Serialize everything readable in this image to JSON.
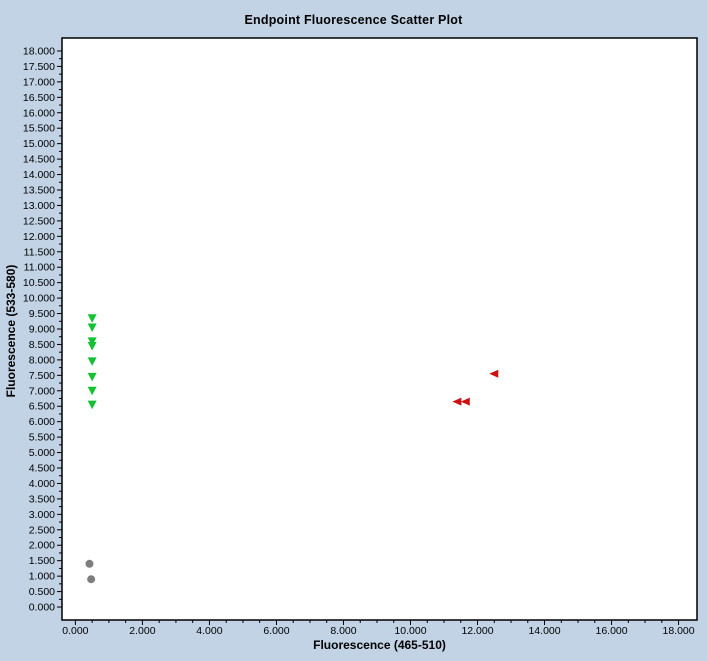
{
  "window": {
    "background_color": "#c2d3e5",
    "plot_border_color": "#000000",
    "plot_background_color": "#ffffff"
  },
  "chart_data": {
    "type": "scatter",
    "title": "Endpoint Fluorescence Scatter Plot",
    "xlabel": "Fluorescence (465-510)",
    "ylabel": "Fluorescence (533-580)",
    "xlim": [
      -0.4,
      18.55
    ],
    "ylim": [
      -0.42,
      18.42
    ],
    "grid": false,
    "legend_position": "none",
    "x_major_ticks": [
      0,
      2,
      4,
      6,
      8,
      10,
      12,
      14,
      16,
      18
    ],
    "x_tick_labels": [
      "0.000",
      "2.000",
      "4.000",
      "6.000",
      "8.000",
      "10.000",
      "12.000",
      "14.000",
      "16.000",
      "18.000"
    ],
    "x_minor_step": 0.5,
    "y_major_ticks": [
      0,
      0.5,
      1,
      1.5,
      2,
      2.5,
      3,
      3.5,
      4,
      4.5,
      5,
      5.5,
      6,
      6.5,
      7,
      7.5,
      8,
      8.5,
      9,
      9.5,
      10,
      10.5,
      11,
      11.5,
      12,
      12.5,
      13,
      13.5,
      14,
      14.5,
      15,
      15.5,
      16,
      16.5,
      17,
      17.5,
      18
    ],
    "y_tick_labels": [
      "0.000",
      "0.500",
      "1.000",
      "1.500",
      "2.000",
      "2.500",
      "3.000",
      "3.500",
      "4.000",
      "4.500",
      "5.000",
      "5.500",
      "6.000",
      "6.500",
      "7.000",
      "7.500",
      "8.000",
      "8.500",
      "9.000",
      "9.500",
      "10.000",
      "10.500",
      "11.000",
      "11.500",
      "12.000",
      "12.500",
      "13.000",
      "13.500",
      "14.000",
      "14.500",
      "15.000",
      "15.500",
      "16.000",
      "16.500",
      "17.000",
      "17.500",
      "18.000"
    ],
    "y_minor_step": 0.25,
    "series": [
      {
        "name": "green-samples",
        "marker": "triangle-down",
        "color": "#12c232",
        "points": [
          [
            0.5,
            9.35
          ],
          [
            0.5,
            9.05
          ],
          [
            0.5,
            8.6
          ],
          [
            0.5,
            8.45
          ],
          [
            0.5,
            7.95
          ],
          [
            0.5,
            7.45
          ],
          [
            0.5,
            7.0
          ],
          [
            0.5,
            6.55
          ]
        ]
      },
      {
        "name": "red-samples",
        "marker": "triangle-left",
        "color": "#cc1111",
        "points": [
          [
            12.5,
            7.55
          ],
          [
            11.4,
            6.65
          ],
          [
            11.65,
            6.65
          ]
        ]
      },
      {
        "name": "gray-samples",
        "marker": "circle",
        "color": "#7e7e7e",
        "points": [
          [
            0.42,
            1.4
          ],
          [
            0.47,
            0.9
          ]
        ]
      }
    ]
  }
}
